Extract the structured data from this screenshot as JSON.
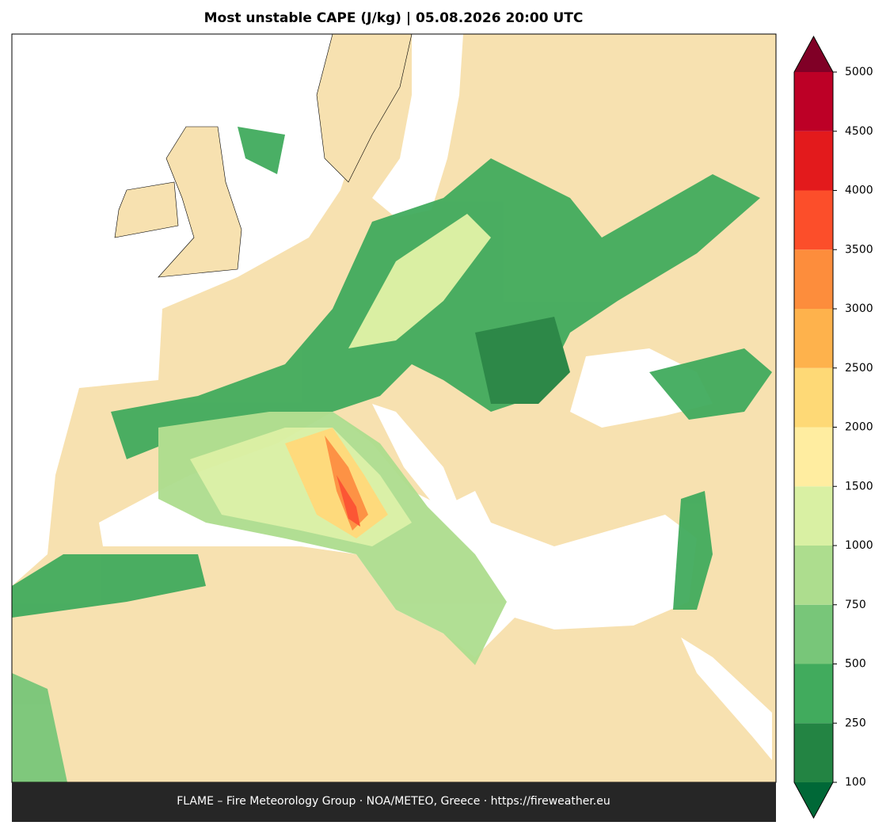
{
  "title": "Most unstable CAPE (J/kg)  |  05.08.2026 20:00 UTC",
  "footer": "FLAME – Fire Meteorology Group · NOA/METEO, Greece · https://fireweather.eu",
  "colorbar": {
    "ticks": [
      100,
      250,
      500,
      750,
      1000,
      1500,
      2000,
      2500,
      3000,
      3500,
      4000,
      4500,
      5000
    ],
    "colors": [
      "#238443",
      "#41ab5d",
      "#78c679",
      "#addd8e",
      "#d9f0a3",
      "#ffeda0",
      "#fed976",
      "#feb24c",
      "#fd8d3c",
      "#fc4e2a",
      "#e31a1c",
      "#bd0026"
    ],
    "under_color": "#006837",
    "over_color": "#800026"
  }
}
